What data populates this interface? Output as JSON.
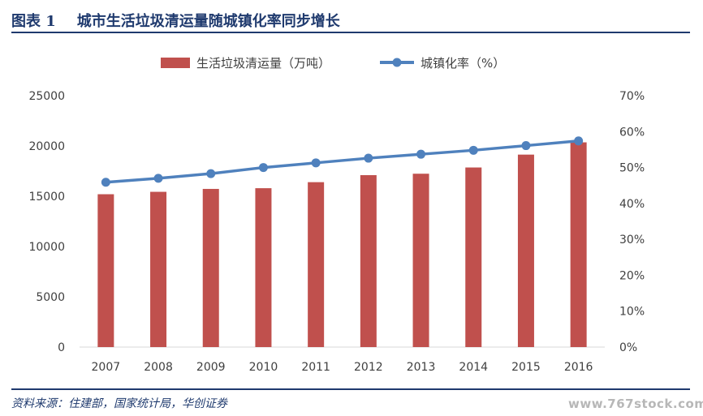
{
  "figure": {
    "number": "图表 1",
    "title": "城市生活垃圾清运量随城镇化率同步增长",
    "source": "资料来源：住建部，国家统计局，华创证券",
    "watermark": "www.767stock.com"
  },
  "colors": {
    "bar": "#c0504d",
    "line": "#4f81bd",
    "title": "#1f3a6e"
  },
  "chart_data": {
    "type": "bar",
    "title": "",
    "categories": [
      "2007",
      "2008",
      "2009",
      "2010",
      "2011",
      "2012",
      "2013",
      "2014",
      "2015",
      "2016"
    ],
    "series": [
      {
        "name": "生活垃圾清运量（万吨）",
        "type": "bar",
        "axis": "left",
        "values": [
          15200,
          15440,
          15730,
          15800,
          16400,
          17100,
          17240,
          17860,
          19140,
          20360
        ]
      },
      {
        "name": "城镇化率（%）",
        "type": "line",
        "axis": "right",
        "values": [
          45.9,
          47.0,
          48.3,
          50.0,
          51.3,
          52.6,
          53.7,
          54.8,
          56.1,
          57.4
        ]
      }
    ],
    "ylim_left": [
      0,
      25000
    ],
    "yticks_left": [
      "0",
      "5000",
      "10000",
      "15000",
      "20000",
      "25000"
    ],
    "ylim_right": [
      0,
      70
    ],
    "yticks_right": [
      "0%",
      "10%",
      "20%",
      "30%",
      "40%",
      "50%",
      "60%",
      "70%"
    ],
    "legend": "top-center",
    "grid": false
  }
}
